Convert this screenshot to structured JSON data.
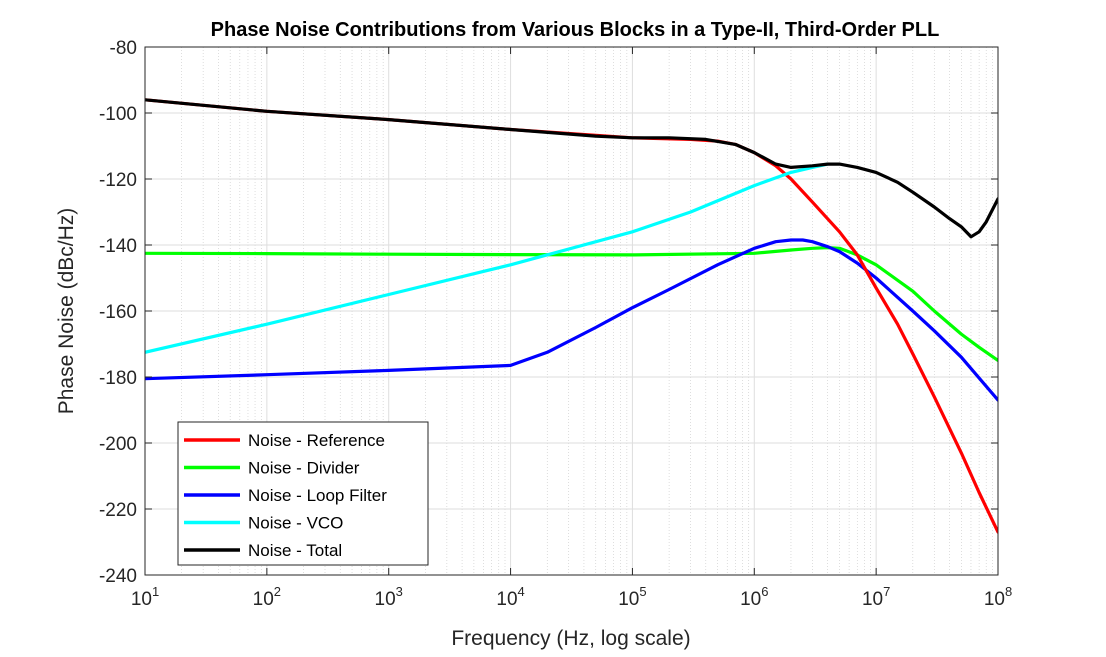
{
  "chart_data": {
    "type": "line",
    "title": "Phase Noise Contributions from Various Blocks in a Type-II, Third-Order PLL",
    "xlabel": "Frequency (Hz, log scale)",
    "ylabel": "Phase Noise (dBc/Hz)",
    "xscale": "log",
    "xlim": [
      10,
      100000000
    ],
    "ylim": [
      -240,
      -80
    ],
    "grid": true,
    "legend_position": "bottom-left",
    "x_ticks": [
      {
        "base": "10",
        "exp": "1"
      },
      {
        "base": "10",
        "exp": "2"
      },
      {
        "base": "10",
        "exp": "3"
      },
      {
        "base": "10",
        "exp": "4"
      },
      {
        "base": "10",
        "exp": "5"
      },
      {
        "base": "10",
        "exp": "6"
      },
      {
        "base": "10",
        "exp": "7"
      },
      {
        "base": "10",
        "exp": "8"
      }
    ],
    "y_ticks": [
      "-80",
      "-100",
      "-120",
      "-140",
      "-160",
      "-180",
      "-200",
      "-220",
      "-240"
    ],
    "series": [
      {
        "name": "Noise - Reference",
        "color": "#ff0000",
        "x": [
          10,
          100,
          1000,
          10000,
          100000,
          300000,
          500000,
          700000,
          1000000,
          1500000,
          2000000,
          3000000,
          5000000,
          7000000,
          10000000,
          15000000,
          20000000,
          30000000,
          50000000,
          70000000,
          100000000
        ],
        "y": [
          -96,
          -99.5,
          -102,
          -105,
          -107.5,
          -108,
          -108.5,
          -109.5,
          -112,
          -116,
          -120,
          -127,
          -136,
          -143,
          -153,
          -164,
          -173,
          -186,
          -203,
          -215,
          -227
        ]
      },
      {
        "name": "Noise - Divider",
        "color": "#00ff00",
        "x": [
          10,
          100,
          1000,
          10000,
          100000,
          1000000,
          2000000,
          3000000,
          4000000,
          5000000,
          7000000,
          10000000,
          20000000,
          30000000,
          50000000,
          70000000,
          100000000
        ],
        "y": [
          -142.5,
          -142.6,
          -142.8,
          -142.9,
          -143,
          -142.5,
          -141.5,
          -141,
          -140.8,
          -141,
          -143,
          -146,
          -154,
          -160,
          -167,
          -171,
          -175
        ]
      },
      {
        "name": "Noise - Loop Filter",
        "color": "#0000ff",
        "x": [
          10,
          100,
          1000,
          10000,
          20000,
          50000,
          100000,
          200000,
          500000,
          1000000,
          1500000,
          2000000,
          2500000,
          3000000,
          4000000,
          5000000,
          7000000,
          10000000,
          20000000,
          30000000,
          50000000,
          100000000
        ],
        "y": [
          -180.5,
          -179.3,
          -178,
          -176.5,
          -172.5,
          -165,
          -159,
          -153.5,
          -146,
          -141,
          -139,
          -138.5,
          -138.5,
          -139,
          -140.5,
          -142,
          -145.5,
          -150,
          -160,
          -166,
          -174,
          -187
        ]
      },
      {
        "name": "Noise - VCO",
        "color": "#00ffff",
        "x": [
          10,
          100,
          1000,
          10000,
          100000,
          300000,
          1000000,
          2000000,
          3000000,
          4000000
        ],
        "y": [
          -172.5,
          -164,
          -155,
          -146,
          -136,
          -130,
          -122,
          -118,
          -116.5,
          -115.5
        ]
      },
      {
        "name": "Noise - Total",
        "color": "#000000",
        "x": [
          10,
          100,
          1000,
          10000,
          50000,
          100000,
          200000,
          400000,
          700000,
          1000000,
          1500000,
          2000000,
          3000000,
          4000000,
          5000000,
          7000000,
          10000000,
          15000000,
          20000000,
          30000000,
          40000000,
          50000000,
          60000000,
          70000000,
          80000000,
          100000000
        ],
        "y": [
          -96,
          -99.5,
          -102,
          -105,
          -107,
          -107.5,
          -107.5,
          -108,
          -109.5,
          -112,
          -115.5,
          -116.5,
          -116,
          -115.5,
          -115.5,
          -116.5,
          -118,
          -121,
          -124,
          -128.5,
          -132,
          -134.5,
          -137.5,
          -136,
          -133,
          -126
        ]
      }
    ]
  }
}
